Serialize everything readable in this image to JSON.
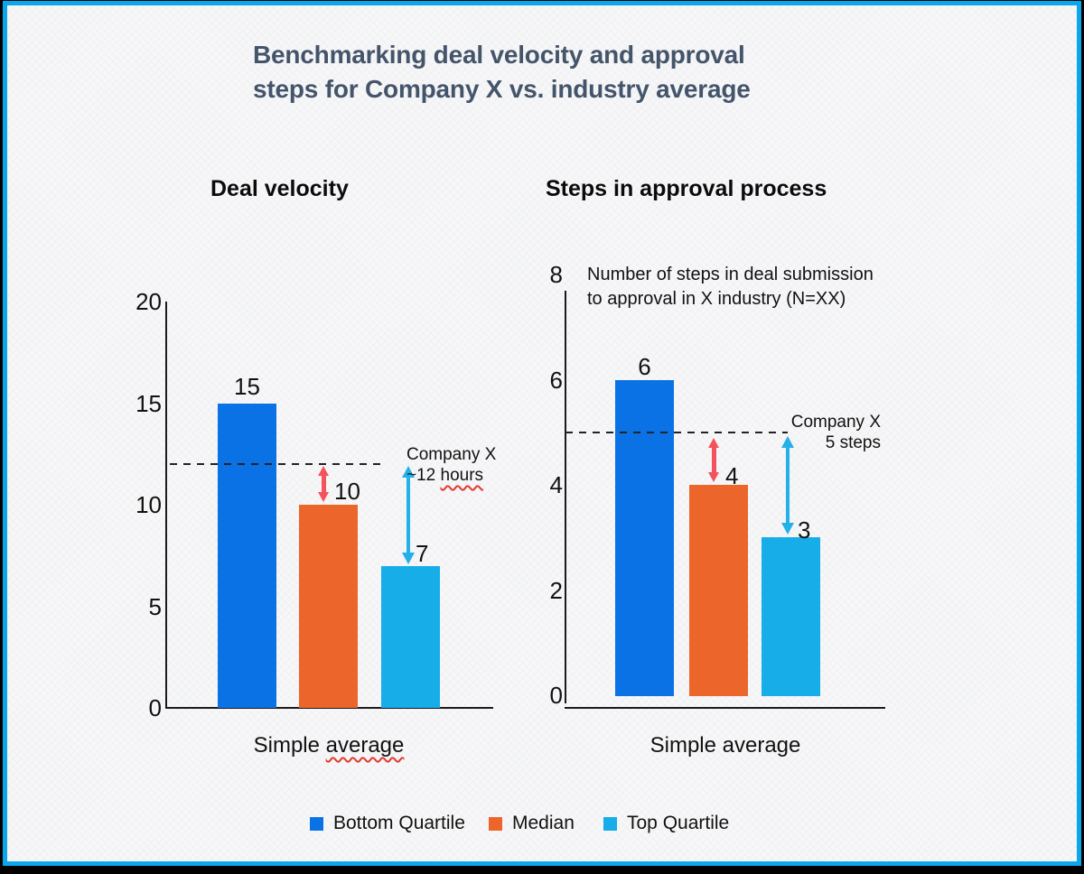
{
  "slide": {
    "title": "Benchmarking deal velocity and approval\nsteps for Company X vs. industry average"
  },
  "colors": {
    "frame": "#0ba7ec",
    "slide_background": "#f7f7f8",
    "title_text": "#44546a",
    "bottom_quartile": "#0b72e6",
    "median": "#ec662b",
    "top_quartile": "#16ade8",
    "arrow_red": "#f4535e",
    "arrow_blue": "#24b0e8",
    "spellcheck_underline": "#e23b2e",
    "axis": "#1a1a1a"
  },
  "chart_data": [
    {
      "type": "bar",
      "title": "Deal velocity",
      "categories": [
        "Bottom Quartile",
        "Median",
        "Top Quartile"
      ],
      "values": [
        15,
        10,
        7
      ],
      "value_labels": [
        "15",
        "10",
        "7"
      ],
      "xlabel": "Simple average",
      "xlabel_parts": [
        {
          "text": "Simple ",
          "misspelled": false
        },
        {
          "text": "average",
          "misspelled": true
        }
      ],
      "ylim": [
        0,
        20
      ],
      "yticks": [
        0,
        5,
        10,
        15,
        20
      ],
      "grid": false,
      "legend_position": "bottom",
      "reference_line": {
        "value": 12,
        "label": "Company X ~12 hours",
        "label_lines": [
          [
            {
              "text": "Company X",
              "misspelled": false
            }
          ],
          [
            {
              "text": "~12 ",
              "misspelled": false
            },
            {
              "text": "hours",
              "misspelled": true
            }
          ]
        ]
      }
    },
    {
      "type": "bar",
      "title": "Steps in approval process",
      "note_lines": [
        "Number of steps in deal submission",
        "to approval in X industry (N=XX)"
      ],
      "categories": [
        "Bottom Quartile",
        "Median",
        "Top Quartile"
      ],
      "values": [
        6,
        4,
        3
      ],
      "value_labels": [
        "6",
        "4",
        "3"
      ],
      "xlabel": "Simple average",
      "xlabel_parts": [
        {
          "text": "Simple average",
          "misspelled": false
        }
      ],
      "ylim": [
        0,
        8
      ],
      "yticks": [
        0,
        2,
        4,
        6,
        8
      ],
      "grid": false,
      "legend_position": "bottom",
      "reference_line": {
        "value": 5,
        "label": "Company X 5 steps",
        "label_lines": [
          [
            {
              "text": "Company X",
              "misspelled": false
            }
          ],
          [
            {
              "text": "5 steps",
              "misspelled": false
            }
          ]
        ]
      }
    }
  ],
  "legend": {
    "items": [
      {
        "label": "Bottom Quartile",
        "color": "#0b72e6"
      },
      {
        "label": "Median",
        "color": "#ec662b"
      },
      {
        "label": "Top Quartile",
        "color": "#16ade8"
      }
    ]
  }
}
